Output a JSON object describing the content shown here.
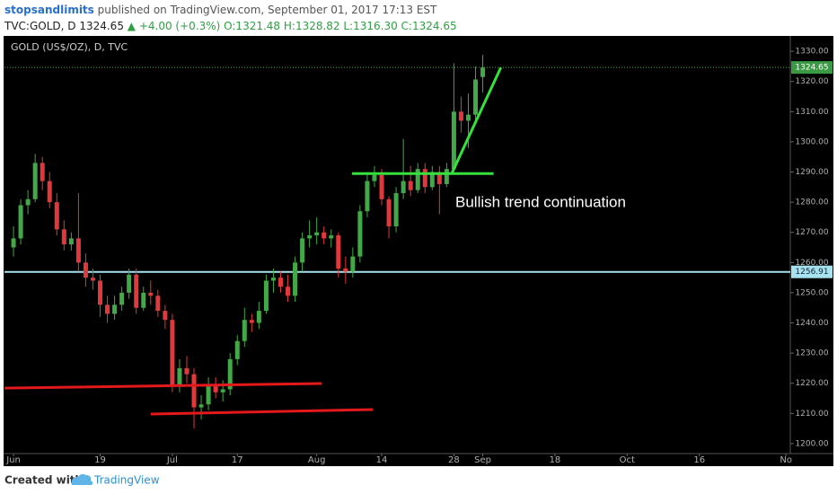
{
  "header": {
    "author": "stopsandlimits",
    "published": "published on TradingView.com, September 01, 2017 17:13 EST",
    "symbol": "TVC:GOLD, D",
    "last": "1324.65",
    "change": "▲ +4.00 (+0.3%)",
    "ohlc": "O:1321.48 H:1328.82 L:1316.30 C:1324.65"
  },
  "footer": {
    "created": "Created with",
    "brand": "TradingView"
  },
  "chart_data": {
    "type": "candlestick",
    "title": "GOLD (US$/OZ), D, TVC",
    "up_color": "#43a848",
    "down_color": "#e0393c",
    "x": [
      0,
      1,
      2,
      3,
      4,
      5,
      6,
      7,
      8,
      9,
      10,
      11,
      12,
      13,
      14,
      15,
      16,
      17,
      18,
      19,
      20,
      21,
      22,
      23,
      24,
      25,
      26,
      27,
      28,
      29,
      30,
      31,
      32,
      33,
      34,
      35,
      36,
      37,
      38,
      39,
      40,
      41,
      42,
      43,
      44,
      45,
      46,
      47,
      48,
      49,
      50,
      51,
      52,
      53,
      54,
      55,
      56,
      57,
      58,
      59,
      60,
      61,
      62,
      63,
      64,
      65
    ],
    "open": [
      1265,
      1268,
      1279,
      1281,
      1293,
      1287,
      1280,
      1271,
      1266,
      1268,
      1260,
      1255,
      1254,
      1246,
      1243,
      1246,
      1250,
      1256,
      1245,
      1250,
      1249,
      1244,
      1241,
      1219,
      1225,
      1223,
      1212,
      1213,
      1219,
      1217,
      1218,
      1228,
      1234,
      1241,
      1240,
      1244,
      1254,
      1255,
      1252,
      1249,
      1260,
      1268,
      1269,
      1270,
      1268,
      1269,
      1258,
      1257,
      1262,
      1277,
      1287,
      1289,
      1281,
      1272,
      1283,
      1287,
      1284,
      1291,
      1285,
      1290,
      1286,
      1291,
      1310,
      1307,
      1309,
      1321.48
    ],
    "high": [
      1272,
      1281,
      1284,
      1296,
      1295,
      1290,
      1283,
      1274,
      1270,
      1283,
      1263,
      1258,
      1256,
      1249,
      1249,
      1252,
      1258,
      1258,
      1252,
      1254,
      1251,
      1246,
      1243,
      1228,
      1229,
      1225,
      1216,
      1222,
      1222,
      1221,
      1230,
      1236,
      1245,
      1243,
      1247,
      1256,
      1258,
      1257,
      1256,
      1262,
      1270,
      1274,
      1275,
      1272,
      1271,
      1270,
      1262,
      1265,
      1279,
      1290,
      1292,
      1291,
      1282,
      1285,
      1301,
      1292,
      1293,
      1293,
      1292,
      1292,
      1293,
      1326,
      1315,
      1316,
      1325,
      1328.82
    ],
    "low": [
      1262,
      1266,
      1276,
      1280,
      1284,
      1278,
      1269,
      1264,
      1264,
      1257,
      1252,
      1251,
      1242,
      1240,
      1241,
      1244,
      1248,
      1243,
      1244,
      1246,
      1242,
      1238,
      1217,
      1217,
      1220,
      1205,
      1208,
      1211,
      1215,
      1214,
      1216,
      1226,
      1232,
      1237,
      1238,
      1243,
      1250,
      1250,
      1247,
      1247,
      1257,
      1265,
      1266,
      1266,
      1265,
      1255,
      1253,
      1255,
      1260,
      1275,
      1285,
      1279,
      1268,
      1270,
      1281,
      1282,
      1283,
      1283,
      1284,
      1276,
      1285,
      1290,
      1303,
      1298,
      1306,
      1316.3
    ],
    "close": [
      1268,
      1279,
      1281,
      1293,
      1287,
      1280,
      1271,
      1266,
      1268,
      1260,
      1255,
      1254,
      1246,
      1243,
      1246,
      1250,
      1256,
      1245,
      1250,
      1249,
      1244,
      1241,
      1219,
      1225,
      1223,
      1212,
      1213,
      1219,
      1217,
      1218,
      1228,
      1234,
      1241,
      1240,
      1244,
      1254,
      1255,
      1252,
      1249,
      1260,
      1268,
      1269,
      1270,
      1268,
      1269,
      1258,
      1257,
      1262,
      1277,
      1287,
      1289,
      1281,
      1272,
      1283,
      1287,
      1284,
      1291,
      1285,
      1290,
      1286,
      1291,
      1310,
      1307,
      1309,
      1320.65,
      1324.65
    ],
    "xlim": [
      -1.25,
      107.6
    ],
    "xticks": [
      {
        "value": 0,
        "label": "Jun"
      },
      {
        "value": 12,
        "label": "19"
      },
      {
        "value": 22,
        "label": "Jul"
      },
      {
        "value": 31,
        "label": "17"
      },
      {
        "value": 42,
        "label": "Aug"
      },
      {
        "value": 51,
        "label": "14"
      },
      {
        "value": 61,
        "label": "28"
      },
      {
        "value": 65,
        "label": "Sep"
      },
      {
        "value": 75,
        "label": "18"
      },
      {
        "value": 85,
        "label": "Oct"
      },
      {
        "value": 95,
        "label": "16"
      },
      {
        "value": 107,
        "label": "No"
      }
    ],
    "ylim": [
      1196.7,
      1334.5
    ],
    "yticks": [
      {
        "value": 1200,
        "label": "1200.00"
      },
      {
        "value": 1210,
        "label": "1210.00"
      },
      {
        "value": 1220,
        "label": "1220.00"
      },
      {
        "value": 1230,
        "label": "1230.00"
      },
      {
        "value": 1240,
        "label": "1240.00"
      },
      {
        "value": 1250,
        "label": "1250.00"
      },
      {
        "value": 1260,
        "label": "1260.00"
      },
      {
        "value": 1270,
        "label": "1270.00"
      },
      {
        "value": 1280,
        "label": "1280.00"
      },
      {
        "value": 1290,
        "label": "1290.00"
      },
      {
        "value": 1300,
        "label": "1300.00"
      },
      {
        "value": 1310,
        "label": "1310.00"
      },
      {
        "value": 1320,
        "label": "1320.00"
      },
      {
        "value": 1330,
        "label": "1330.00"
      }
    ],
    "grid": false,
    "hline": {
      "value": 1256.91,
      "color": "#a6e3ee"
    },
    "drawings": [
      {
        "color": "#e3191c",
        "points": [
          [
            -1.24,
            1218.4
          ],
          [
            42.7,
            1219.9
          ]
        ]
      },
      {
        "color": "#e3191c",
        "points": [
          [
            19,
            1209.8
          ],
          [
            49.8,
            1211.3
          ]
        ]
      },
      {
        "color": "#35e23c",
        "points": [
          [
            46.9,
            1289.5
          ],
          [
            66.5,
            1289.5
          ]
        ]
      },
      {
        "color": "#35e23c",
        "points": [
          [
            60.7,
            1289.5
          ],
          [
            67.5,
            1324.6
          ]
        ]
      }
    ],
    "annotation": {
      "text": "Bullish trend continuation",
      "x": 61.2,
      "y": 1279.7
    }
  }
}
